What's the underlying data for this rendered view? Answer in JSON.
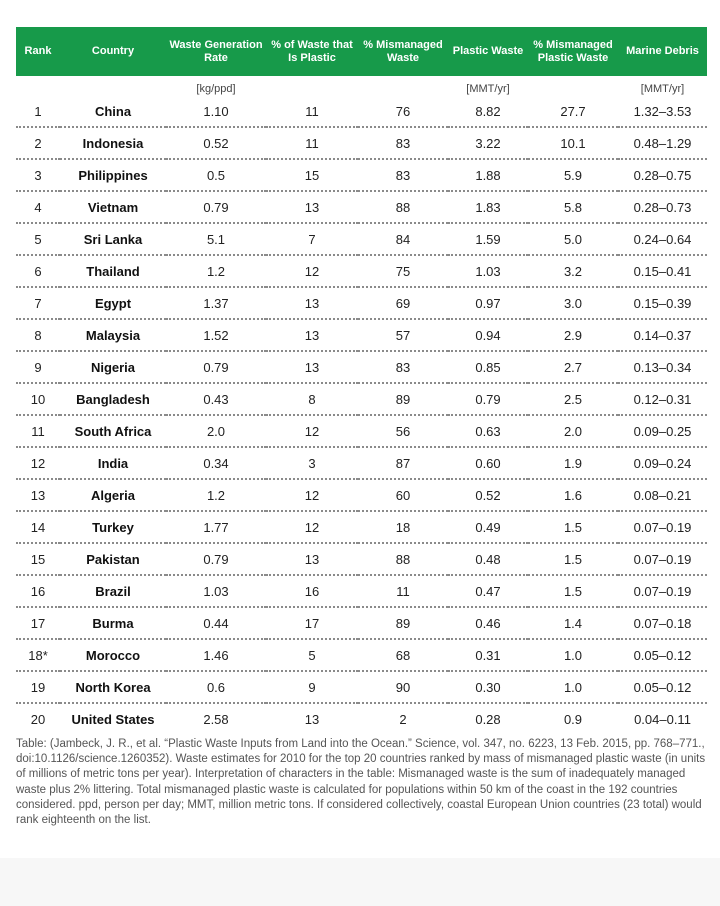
{
  "columns": [
    {
      "label": "Rank",
      "unit": ""
    },
    {
      "label": "Country",
      "unit": ""
    },
    {
      "label": "Waste Generation Rate",
      "unit": "[kg/ppd]"
    },
    {
      "label": "% of Waste that Is Plastic",
      "unit": ""
    },
    {
      "label": "% Mismanaged Waste",
      "unit": ""
    },
    {
      "label": "Plastic Waste",
      "unit": "[MMT/yr]"
    },
    {
      "label": "% Mismanaged Plastic Waste",
      "unit": ""
    },
    {
      "label": "Marine Debris",
      "unit": "[MMT/yr]"
    }
  ],
  "rows": [
    [
      "1",
      "China",
      "1.10",
      "11",
      "76",
      "8.82",
      "27.7",
      "1.32–3.53"
    ],
    [
      "2",
      "Indonesia",
      "0.52",
      "11",
      "83",
      "3.22",
      "10.1",
      "0.48–1.29"
    ],
    [
      "3",
      "Philippines",
      "0.5",
      "15",
      "83",
      "1.88",
      "5.9",
      "0.28–0.75"
    ],
    [
      "4",
      "Vietnam",
      "0.79",
      "13",
      "88",
      "1.83",
      "5.8",
      "0.28–0.73"
    ],
    [
      "5",
      "Sri Lanka",
      "5.1",
      "7",
      "84",
      "1.59",
      "5.0",
      "0.24–0.64"
    ],
    [
      "6",
      "Thailand",
      "1.2",
      "12",
      "75",
      "1.03",
      "3.2",
      "0.15–0.41"
    ],
    [
      "7",
      "Egypt",
      "1.37",
      "13",
      "69",
      "0.97",
      "3.0",
      "0.15–0.39"
    ],
    [
      "8",
      "Malaysia",
      "1.52",
      "13",
      "57",
      "0.94",
      "2.9",
      "0.14–0.37"
    ],
    [
      "9",
      "Nigeria",
      "0.79",
      "13",
      "83",
      "0.85",
      "2.7",
      "0.13–0.34"
    ],
    [
      "10",
      "Bangladesh",
      "0.43",
      "8",
      "89",
      "0.79",
      "2.5",
      "0.12–0.31"
    ],
    [
      "11",
      "South Africa",
      "2.0",
      "12",
      "56",
      "0.63",
      "2.0",
      "0.09–0.25"
    ],
    [
      "12",
      "India",
      "0.34",
      "3",
      "87",
      "0.60",
      "1.9",
      "0.09–0.24"
    ],
    [
      "13",
      "Algeria",
      "1.2",
      "12",
      "60",
      "0.52",
      "1.6",
      "0.08–0.21"
    ],
    [
      "14",
      "Turkey",
      "1.77",
      "12",
      "18",
      "0.49",
      "1.5",
      "0.07–0.19"
    ],
    [
      "15",
      "Pakistan",
      "0.79",
      "13",
      "88",
      "0.48",
      "1.5",
      "0.07–0.19"
    ],
    [
      "16",
      "Brazil",
      "1.03",
      "16",
      "11",
      "0.47",
      "1.5",
      "0.07–0.19"
    ],
    [
      "17",
      "Burma",
      "0.44",
      "17",
      "89",
      "0.46",
      "1.4",
      "0.07–0.18"
    ],
    [
      "18*",
      "Morocco",
      "1.46",
      "5",
      "68",
      "0.31",
      "1.0",
      "0.05–0.12"
    ],
    [
      "19",
      "North Korea",
      "0.6",
      "9",
      "90",
      "0.30",
      "1.0",
      "0.05–0.12"
    ],
    [
      "20",
      "United States",
      "2.58",
      "13",
      "2",
      "0.28",
      "0.9",
      "0.04–0.11"
    ]
  ],
  "footnote": "Table: (Jambeck, J. R., et al. “Plastic Waste Inputs from Land into the Ocean.” Science, vol. 347, no. 6223, 13 Feb. 2015, pp. 768–771., doi:10.1126/science.1260352). Waste estimates for 2010 for the top 20 countries ranked by mass of mismanaged plastic waste (in units of millions of metric tons per year). Interpretation of characters in the table: Mismanaged waste is the sum of inadequately managed waste plus 2% littering. Total mismanaged plastic waste is calculated for populations within 50 km of the coast in the 192 countries considered. ppd, person per day; MMT, million metric tons. If considered collectively, coastal European Union countries (23 total) would rank eighteenth on the list.",
  "colors": {
    "header_bg": "#179a4a",
    "header_text": "#ffffff",
    "row_divider": "#8a8a8a"
  }
}
